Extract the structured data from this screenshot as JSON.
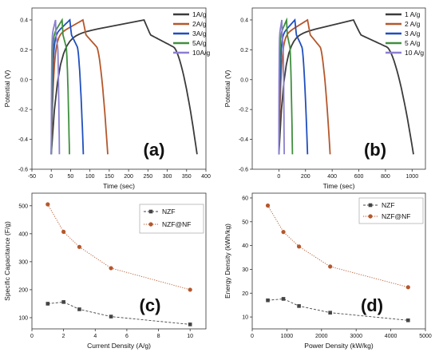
{
  "chart_data": [
    {
      "id": "a",
      "type": "line",
      "panel_label": "(a)",
      "xlabel": "Time (sec)",
      "ylabel": "Potential (V)",
      "xlim": [
        -50,
        400
      ],
      "ylim": [
        -0.6,
        0.48
      ],
      "xticks": [
        -50,
        0,
        50,
        100,
        150,
        200,
        250,
        300,
        350,
        400
      ],
      "yticks": [
        -0.6,
        -0.4,
        -0.2,
        0.0,
        0.2,
        0.4
      ],
      "ytick_labels": [
        "-0.6",
        "-0.4",
        "-0.2",
        "0.0",
        "0.2",
        "0.4"
      ],
      "legend_position": "top-right",
      "series": [
        {
          "name": "1A/g",
          "color": "#3b3b3b",
          "charge_time": 240,
          "discharge_end": 377
        },
        {
          "name": "2A/g",
          "color": "#b5572c",
          "charge_time": 82,
          "discharge_end": 146
        },
        {
          "name": "3A/g",
          "color": "#1f4fbf",
          "charge_time": 48,
          "discharge_end": 83
        },
        {
          "name": "5A/g",
          "color": "#3f8f3f",
          "charge_time": 28,
          "discharge_end": 47
        },
        {
          "name": "10A/g",
          "color": "#8a7fd0",
          "charge_time": 11,
          "discharge_end": 21
        }
      ]
    },
    {
      "id": "b",
      "type": "line",
      "panel_label": "(b)",
      "xlabel": "Time (sec)",
      "ylabel": "Potential (V)",
      "xlim": [
        -200,
        1100
      ],
      "ylim": [
        -0.6,
        0.48
      ],
      "xticks": [
        0,
        200,
        400,
        600,
        800,
        1000
      ],
      "yticks": [
        -0.6,
        -0.4,
        -0.2,
        0.0,
        0.2,
        0.4
      ],
      "ytick_labels": [
        "-0.6",
        "-0.4",
        "-0.2",
        "0.0",
        "0.2",
        "0.4"
      ],
      "legend_position": "top-right",
      "series": [
        {
          "name": "1 A/g",
          "color": "#3b3b3b",
          "charge_time": 560,
          "discharge_end": 1010
        },
        {
          "name": "2 A/g",
          "color": "#b5572c",
          "charge_time": 215,
          "discharge_end": 385
        },
        {
          "name": "3 A/g",
          "color": "#1f4fbf",
          "charge_time": 120,
          "discharge_end": 215
        },
        {
          "name": "5 A/g",
          "color": "#3f8f3f",
          "charge_time": 58,
          "discharge_end": 102
        },
        {
          "name": "10 A/g",
          "color": "#8a7fd0",
          "charge_time": 22,
          "discharge_end": 40
        }
      ]
    },
    {
      "id": "c",
      "type": "scatter",
      "panel_label": "(c)",
      "xlabel": "Current Density (A/g)",
      "ylabel": "Specific Capacitance (F/g)",
      "xlim": [
        0,
        11
      ],
      "ylim": [
        60,
        545
      ],
      "xticks": [
        0,
        2,
        4,
        6,
        8,
        10
      ],
      "yticks": [
        100,
        200,
        300,
        400,
        500
      ],
      "legend_position": "top-right",
      "series": [
        {
          "name": "NZF",
          "color": "#454545",
          "marker": "square",
          "line": "dashed",
          "x": [
            1,
            2,
            3,
            5,
            10
          ],
          "y": [
            150,
            156,
            130,
            104,
            76
          ]
        },
        {
          "name": "NZF@NF",
          "color": "#b5572c",
          "marker": "circle",
          "line": "dotted",
          "x": [
            1,
            2,
            3,
            5,
            10
          ],
          "y": [
            505,
            407,
            353,
            277,
            200
          ]
        }
      ]
    },
    {
      "id": "d",
      "type": "scatter",
      "panel_label": "(d)",
      "xlabel": "Power Density (kW/kg)",
      "ylabel": "Energy Density (kWh/kg)",
      "xlim": [
        0,
        5000
      ],
      "ylim": [
        5,
        62
      ],
      "xticks": [
        0,
        1000,
        2000,
        3000,
        4000,
        5000
      ],
      "yticks": [
        10,
        20,
        30,
        40,
        50,
        60
      ],
      "legend_position": "top-right",
      "series": [
        {
          "name": "NZF",
          "color": "#454545",
          "marker": "square",
          "line": "dashed",
          "x": [
            450,
            900,
            1350,
            2250,
            4500
          ],
          "y": [
            17,
            17.6,
            14.6,
            11.8,
            8.6
          ]
        },
        {
          "name": "NZF@NF",
          "color": "#b5572c",
          "marker": "circle",
          "line": "dotted",
          "x": [
            450,
            900,
            1350,
            2250,
            4500
          ],
          "y": [
            56.8,
            45.7,
            39.6,
            31.2,
            22.5
          ]
        }
      ]
    }
  ]
}
